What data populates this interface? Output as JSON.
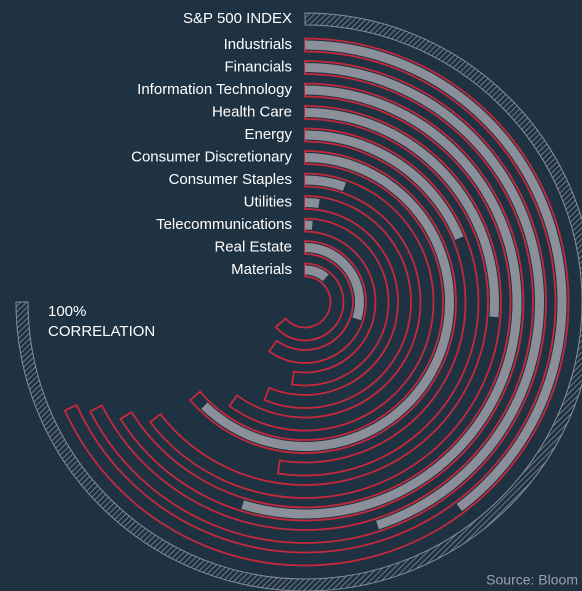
{
  "chart_data": {
    "type": "radial_bar",
    "index_label": "S&P 500 INDEX",
    "index_value": 100,
    "index_style": "hatched",
    "categories": [
      "Industrials",
      "Financials",
      "Information Technology",
      "Health Care",
      "Energy",
      "Consumer Discretionary",
      "Consumer Staples",
      "Utilities",
      "Telecommunications",
      "Real Estate",
      "Materials"
    ],
    "series": [
      {
        "color": "#c8283c",
        "style": "outline",
        "values": [
          91,
          90,
          88,
          86,
          70,
          85,
          80,
          75,
          70,
          80,
          85
        ]
      },
      {
        "color": "#8a8f9a",
        "style": "fill",
        "values": [
          53,
          60,
          73,
          35,
          25,
          83,
          7,
          3,
          2,
          40,
          15
        ]
      }
    ],
    "vlim": [
      0,
      100
    ],
    "annotation": [
      "100%",
      "CORRELATION"
    ],
    "source": "Source: Bloom"
  }
}
